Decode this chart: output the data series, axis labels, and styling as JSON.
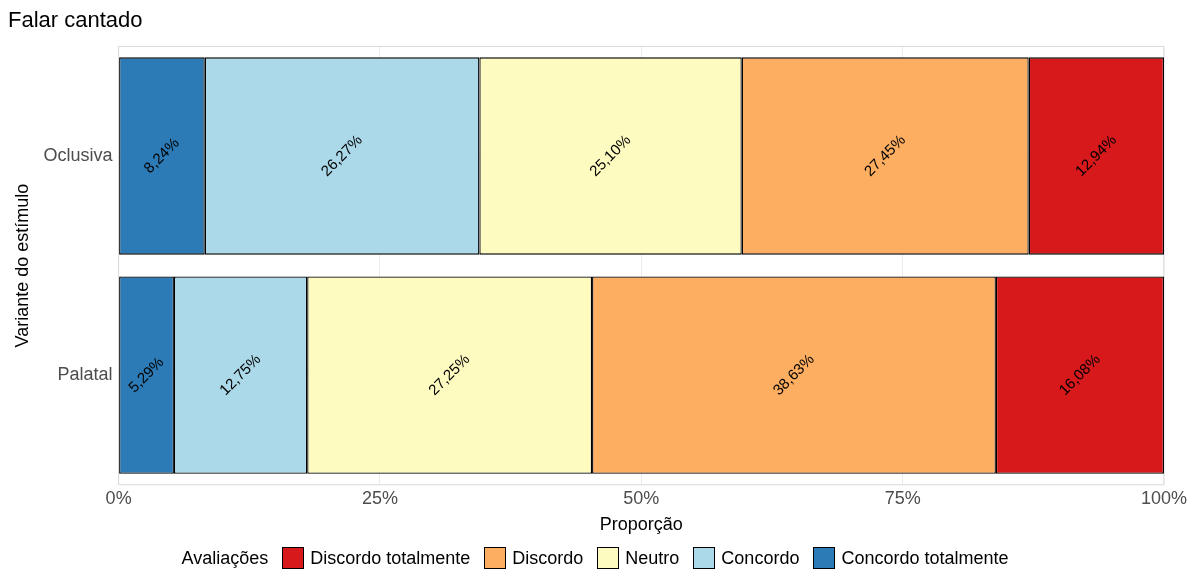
{
  "chart_data": {
    "type": "bar",
    "orientation": "horizontal",
    "stacked": true,
    "title": "Falar cantado",
    "xlabel": "Proporção",
    "ylabel": "Variante do estímulo",
    "legend_title": "Avaliações",
    "legend": "bottom",
    "grid": true,
    "categories": [
      "Oclusiva",
      "Palatal"
    ],
    "xlim": [
      0,
      100
    ],
    "xticks": [
      {
        "value": 0,
        "label": "0%"
      },
      {
        "value": 25,
        "label": "25%"
      },
      {
        "value": 50,
        "label": "50%"
      },
      {
        "value": 75,
        "label": "75%"
      },
      {
        "value": 100,
        "label": "100%"
      }
    ],
    "series": [
      {
        "name": "Concordo totalmente",
        "color": "#2c7bb6",
        "values": [
          8.24,
          5.29
        ],
        "value_labels": [
          "8,24%",
          "5,29%"
        ]
      },
      {
        "name": "Concordo",
        "color": "#abd9e9",
        "values": [
          26.27,
          12.75
        ],
        "value_labels": [
          "26,27%",
          "12,75%"
        ]
      },
      {
        "name": "Neutro",
        "color": "#fefbc0",
        "values": [
          25.1,
          27.25
        ],
        "value_labels": [
          "25,10%",
          "27,25%"
        ]
      },
      {
        "name": "Discordo",
        "color": "#fdae61",
        "values": [
          27.45,
          38.63
        ],
        "value_labels": [
          "27,45%",
          "38,63%"
        ]
      },
      {
        "name": "Discordo totalmente",
        "color": "#d7191c",
        "values": [
          12.94,
          16.08
        ],
        "value_labels": [
          "12,94%",
          "16,08%"
        ]
      }
    ]
  }
}
